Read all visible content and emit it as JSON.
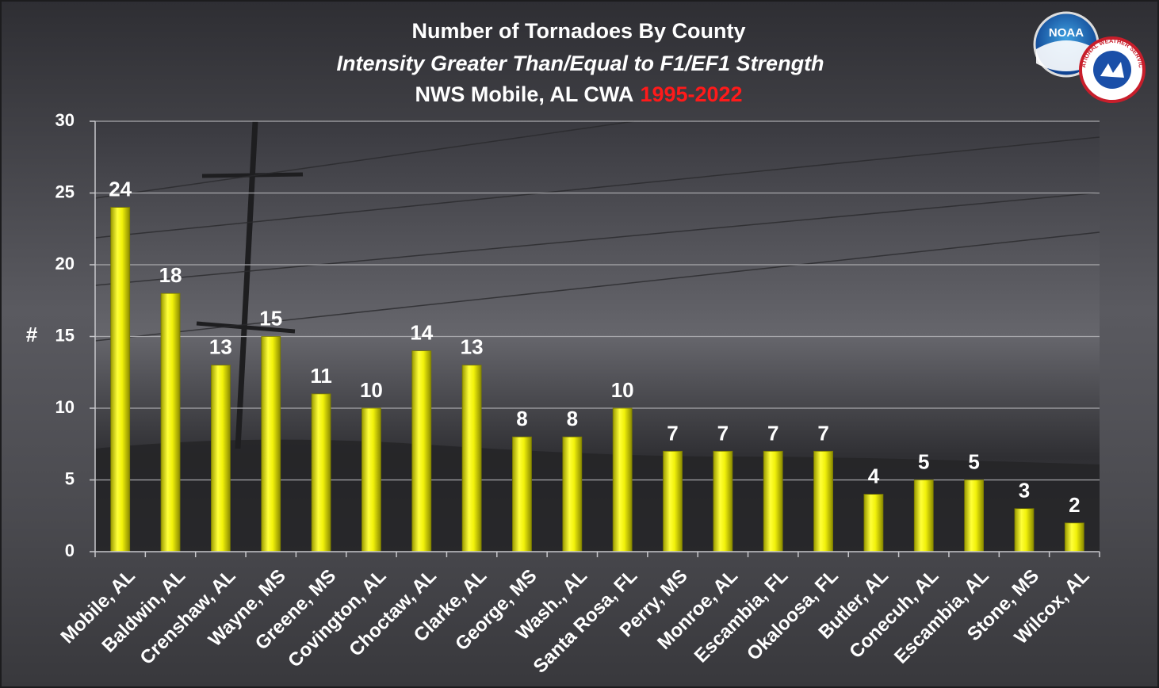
{
  "chart_data": {
    "type": "bar",
    "title": "Number of Tornadoes By County",
    "subtitle": "Intensity Greater Than/Equal to F1/EF1 Strength",
    "title_line3_prefix": "NWS Mobile, AL CWA",
    "title_line3_years": "1995-2022",
    "ylabel": "#",
    "xlabel": "",
    "ylim": [
      0,
      30
    ],
    "yticks": [
      0,
      5,
      10,
      15,
      20,
      25,
      30
    ],
    "grid": true,
    "legend": "none",
    "bar_color": "#f2f20a",
    "years_color": "#ff1a1a",
    "categories": [
      "Mobile, AL",
      "Baldwin, AL",
      "Crenshaw, AL",
      "Wayne, MS",
      "Greene, MS",
      "Covington, AL",
      "Choctaw, AL",
      "Clarke, AL",
      "George, MS",
      "Wash., AL",
      "Santa Rosa, FL",
      "Perry, MS",
      "Monroe, AL",
      "Escambia, FL",
      "Okaloosa, FL",
      "Butler, AL",
      "Conecuh, AL",
      "Escambia, AL",
      "Stone, MS",
      "Wilcox, AL"
    ],
    "values": [
      24,
      18,
      13,
      15,
      11,
      10,
      14,
      13,
      8,
      8,
      10,
      7,
      7,
      7,
      7,
      4,
      5,
      5,
      3,
      2
    ]
  },
  "logo": {
    "noara_text": "NOAA",
    "nws_text": "NATIONAL WEATHER SERVICE"
  }
}
